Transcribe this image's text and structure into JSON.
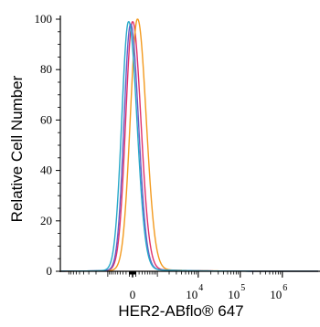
{
  "chart_data": {
    "type": "line",
    "title": "",
    "xlabel": "HER2-ABflo® 647",
    "ylabel": "Relative Cell Number",
    "xscale": "biexponential",
    "ylim": [
      0,
      100
    ],
    "yticks": [
      0,
      20,
      40,
      60,
      80,
      100
    ],
    "xticks": [
      {
        "base": "0",
        "exp": "",
        "value": 0
      },
      {
        "base": "10",
        "exp": "4",
        "value": 10000
      },
      {
        "base": "10",
        "exp": "5",
        "value": 100000
      },
      {
        "base": "10",
        "exp": "6",
        "value": 1000000
      }
    ],
    "grid": false,
    "legend": "none",
    "series": [
      {
        "color": "#e0306a",
        "peak_x": 0,
        "peak_y": 99,
        "width": 1.0
      },
      {
        "color": "#f39a1e",
        "peak_x": 150,
        "peak_y": 100,
        "width": 1.05
      },
      {
        "color": "#6a5bc6",
        "peak_x": -60,
        "peak_y": 98,
        "width": 0.95
      },
      {
        "color": "#27a9c9",
        "peak_x": -120,
        "peak_y": 99,
        "width": 1.0
      }
    ]
  }
}
